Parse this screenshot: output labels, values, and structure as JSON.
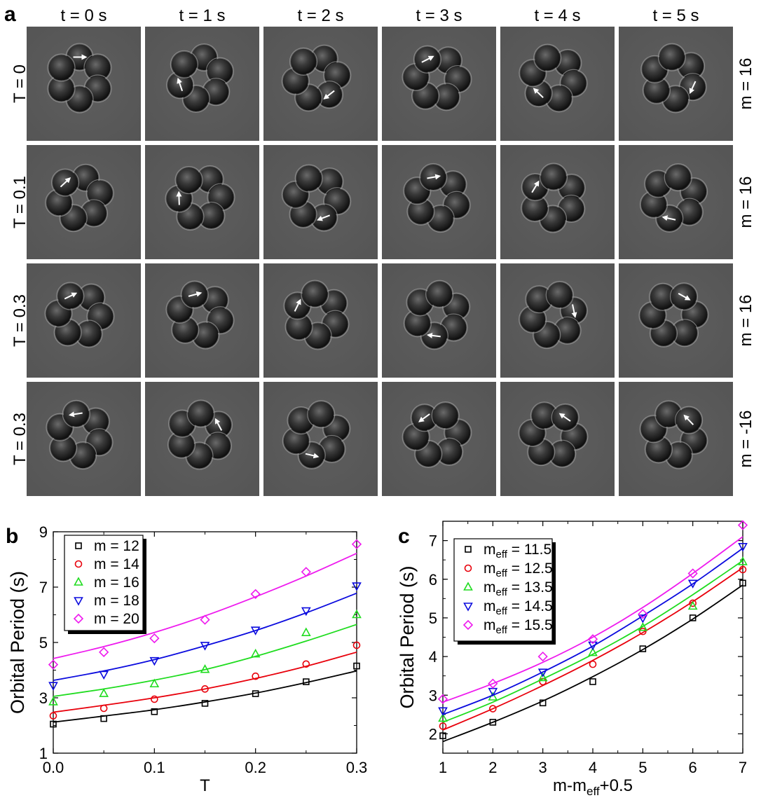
{
  "panel_a": {
    "label": "a",
    "time_labels": [
      "t = 0 s",
      "t = 1 s",
      "t = 2 s",
      "t = 3 s",
      "t = 4 s",
      "t = 5 s"
    ],
    "rows": [
      {
        "T_label": "T = 0",
        "m_label": "m = 16"
      },
      {
        "T_label": "T = 0.1",
        "m_label": "m = 16"
      },
      {
        "T_label": "T = 0.3",
        "m_label": "m = 16"
      },
      {
        "T_label": "T = 0.3",
        "m_label": "m = -16"
      }
    ]
  },
  "colors": {
    "black": "#000000",
    "red": "#e8000b",
    "green": "#1fdc1f",
    "blue": "#0b0bde",
    "magenta": "#ee1aee"
  },
  "chart_data": [
    {
      "panel_label": "b",
      "type": "scatter",
      "xlabel": "T",
      "ylabel": "Orbital Period (s)",
      "xlim": [
        0,
        0.3
      ],
      "ylim": [
        1,
        9
      ],
      "xticks": [
        "0.0",
        "0.1",
        "0.2",
        "0.3"
      ],
      "yticks": [
        "1",
        "3",
        "5",
        "7",
        "9"
      ],
      "legend_position": "top-left",
      "series": [
        {
          "name": "m = 12",
          "marker": "square",
          "color": "black",
          "x": [
            0,
            0.05,
            0.1,
            0.15,
            0.2,
            0.25,
            0.3
          ],
          "y": [
            2.05,
            2.25,
            2.5,
            2.8,
            3.15,
            3.58,
            4.15
          ],
          "fit": [
            2.12,
            2.34,
            2.57,
            2.85,
            3.17,
            3.55,
            3.97
          ]
        },
        {
          "name": "m = 14",
          "marker": "circle",
          "color": "red",
          "x": [
            0,
            0.05,
            0.1,
            0.15,
            0.2,
            0.25,
            0.3
          ],
          "y": [
            2.35,
            2.62,
            2.95,
            3.32,
            3.78,
            4.22,
            4.9
          ],
          "fit": [
            2.48,
            2.73,
            3.0,
            3.32,
            3.7,
            4.14,
            4.65
          ]
        },
        {
          "name": "m = 16",
          "marker": "triangle-up",
          "color": "green",
          "x": [
            0,
            0.05,
            0.1,
            0.15,
            0.2,
            0.25,
            0.3
          ],
          "y": [
            2.85,
            3.15,
            3.5,
            4.02,
            4.58,
            5.35,
            6.0
          ],
          "fit": [
            3.05,
            3.32,
            3.64,
            4.02,
            4.5,
            5.05,
            5.65
          ]
        },
        {
          "name": "m = 18",
          "marker": "triangle-down",
          "color": "blue",
          "x": [
            0,
            0.05,
            0.1,
            0.15,
            0.2,
            0.25,
            0.3
          ],
          "y": [
            3.45,
            3.85,
            4.35,
            4.9,
            5.45,
            6.15,
            7.05
          ],
          "fit": [
            3.63,
            3.97,
            4.38,
            4.88,
            5.43,
            6.07,
            6.78
          ]
        },
        {
          "name": "m = 20",
          "marker": "diamond",
          "color": "magenta",
          "x": [
            0,
            0.05,
            0.1,
            0.15,
            0.2,
            0.25,
            0.3
          ],
          "y": [
            4.2,
            4.65,
            5.15,
            5.82,
            6.75,
            7.55,
            8.55
          ],
          "fit": [
            4.42,
            4.85,
            5.36,
            5.96,
            6.65,
            7.4,
            8.22
          ]
        }
      ]
    },
    {
      "panel_label": "c",
      "type": "scatter",
      "xlabel": "m-m",
      "xlabel_sub": "eff",
      "xlabel_tail": "+0.5",
      "ylabel": "Orbital Period (s)",
      "xlim": [
        1,
        7
      ],
      "ylim": [
        1.5,
        7.5
      ],
      "xticks": [
        "1",
        "2",
        "3",
        "4",
        "5",
        "6",
        "7"
      ],
      "yticks": [
        "2",
        "3",
        "4",
        "5",
        "6",
        "7"
      ],
      "legend_position": "top-left",
      "series": [
        {
          "name": "m",
          "name_sub": "eff",
          "name_tail": " = 11.5",
          "marker": "square",
          "color": "black",
          "x": [
            1,
            2,
            3,
            4,
            5,
            6,
            7
          ],
          "y": [
            1.95,
            2.3,
            2.8,
            3.35,
            4.2,
            5.0,
            5.9
          ],
          "fit": [
            1.8,
            2.3,
            2.85,
            3.48,
            4.18,
            4.97,
            5.85
          ]
        },
        {
          "name": "m",
          "name_sub": "eff",
          "name_tail": " = 12.5",
          "marker": "circle",
          "color": "red",
          "x": [
            1,
            2,
            3,
            4,
            5,
            6,
            7
          ],
          "y": [
            2.2,
            2.65,
            3.35,
            3.8,
            4.65,
            5.38,
            6.25
          ],
          "fit": [
            2.1,
            2.65,
            3.25,
            3.9,
            4.62,
            5.42,
            6.3
          ]
        },
        {
          "name": "m",
          "name_sub": "eff",
          "name_tail": " = 13.5",
          "marker": "triangle-up",
          "color": "green",
          "x": [
            1,
            2,
            3,
            4,
            5,
            6,
            7
          ],
          "y": [
            2.4,
            2.95,
            3.45,
            4.1,
            4.75,
            5.3,
            6.45
          ],
          "fit": [
            2.3,
            2.82,
            3.42,
            4.06,
            4.78,
            5.6,
            6.48
          ]
        },
        {
          "name": "m",
          "name_sub": "eff",
          "name_tail": " = 14.5",
          "marker": "triangle-down",
          "color": "blue",
          "x": [
            1,
            2,
            3,
            4,
            5,
            6,
            7
          ],
          "y": [
            2.6,
            3.1,
            3.6,
            4.3,
            5.0,
            5.9,
            6.85
          ],
          "fit": [
            2.5,
            3.0,
            3.6,
            4.27,
            5.05,
            5.88,
            6.8
          ]
        },
        {
          "name": "m",
          "name_sub": "eff",
          "name_tail": " = 15.5",
          "marker": "diamond",
          "color": "magenta",
          "x": [
            1,
            2,
            3,
            4,
            5,
            6,
            7
          ],
          "y": [
            2.9,
            3.3,
            4.0,
            4.45,
            5.1,
            6.15,
            7.4
          ],
          "fit": [
            2.82,
            3.3,
            3.85,
            4.5,
            5.27,
            6.15,
            7.1
          ]
        }
      ]
    }
  ]
}
